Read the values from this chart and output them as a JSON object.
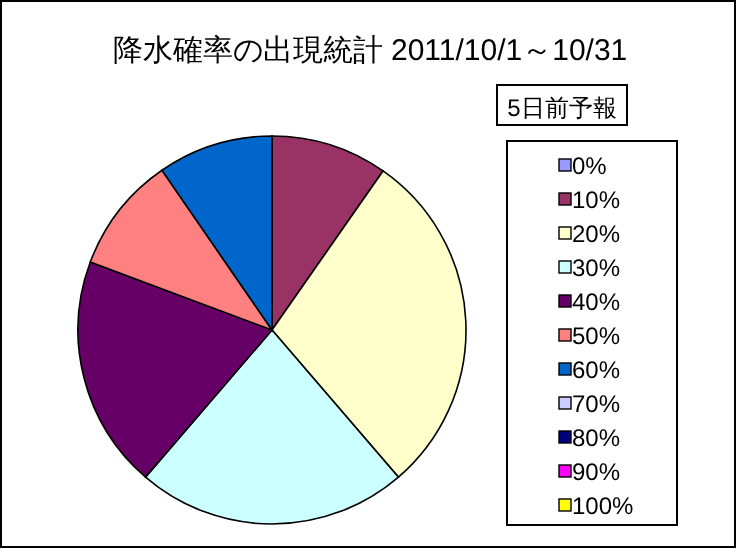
{
  "chart_data": {
    "type": "pie",
    "title": "降水確率の出現統計 2011/10/1～10/31",
    "legend_title": "5日前予報",
    "legend": "right",
    "categories": [
      "0%",
      "10%",
      "20%",
      "30%",
      "40%",
      "50%",
      "60%",
      "70%",
      "80%",
      "90%",
      "100%"
    ],
    "values": [
      0,
      9.7,
      29,
      22.6,
      19.4,
      9.7,
      9.6,
      0,
      0,
      0,
      0
    ],
    "colors": [
      "#9999ff",
      "#993366",
      "#ffffcc",
      "#ccffff",
      "#660066",
      "#ff8080",
      "#0066cc",
      "#ccccff",
      "#000080",
      "#ff00ff",
      "#ffff00"
    ]
  }
}
